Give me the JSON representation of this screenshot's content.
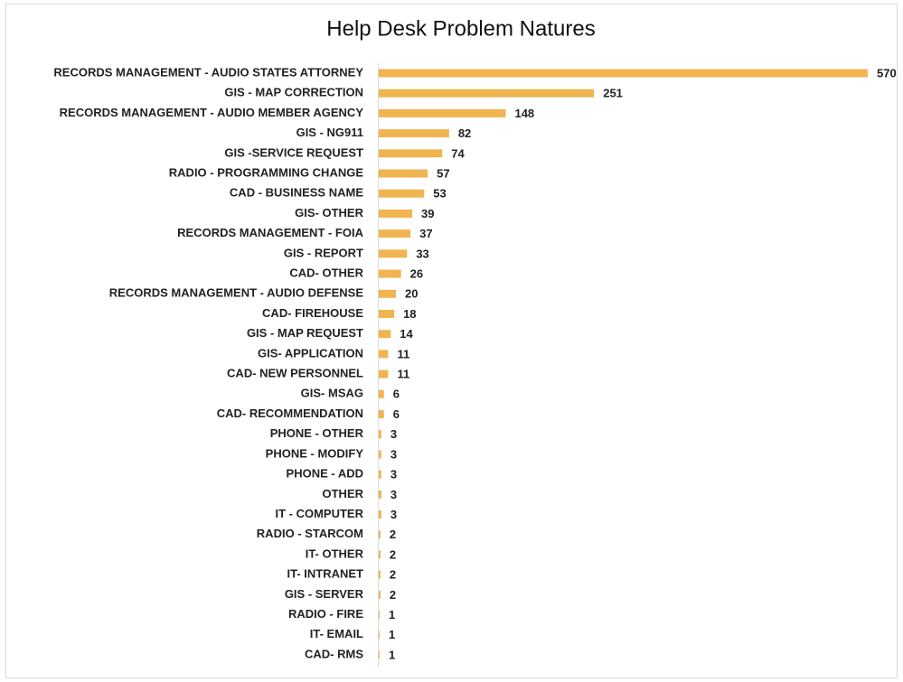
{
  "chart_data": {
    "type": "bar",
    "orientation": "horizontal",
    "title": "Help Desk Problem Natures",
    "categories": [
      "RECORDS MANAGEMENT - AUDIO STATES ATTORNEY",
      "GIS - MAP CORRECTION",
      "RECORDS MANAGEMENT - AUDIO MEMBER AGENCY",
      "GIS - NG911",
      "GIS -SERVICE REQUEST",
      "RADIO - PROGRAMMING CHANGE",
      "CAD - BUSINESS NAME",
      "GIS- OTHER",
      "RECORDS MANAGEMENT - FOIA",
      "GIS - REPORT",
      "CAD- OTHER",
      "RECORDS MANAGEMENT - AUDIO DEFENSE",
      "CAD- FIREHOUSE",
      "GIS - MAP REQUEST",
      "GIS- APPLICATION",
      "CAD- NEW PERSONNEL",
      "GIS- MSAG",
      "CAD- RECOMMENDATION",
      "PHONE - OTHER",
      "PHONE - MODIFY",
      "PHONE - ADD",
      "OTHER",
      "IT - COMPUTER",
      "RADIO - STARCOM",
      "IT- OTHER",
      "IT- INTRANET",
      "GIS - SERVER",
      "RADIO - FIRE",
      "IT- EMAIL",
      "CAD- RMS"
    ],
    "values": [
      570,
      251,
      148,
      82,
      74,
      57,
      53,
      39,
      37,
      33,
      26,
      20,
      18,
      14,
      11,
      11,
      6,
      6,
      3,
      3,
      3,
      3,
      3,
      2,
      2,
      2,
      2,
      1,
      1,
      1
    ],
    "color": "#f0b450"
  }
}
